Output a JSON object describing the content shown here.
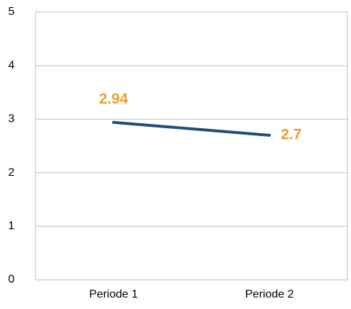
{
  "chart_data": {
    "type": "line",
    "categories": [
      "Periode 1",
      "Periode 2"
    ],
    "values": [
      2.94,
      2.7
    ],
    "color": "#1f4e79",
    "label_color": "#e8a02a",
    "ylim": [
      0,
      5
    ],
    "yticks": [
      0,
      1,
      2,
      3,
      4,
      5
    ],
    "grid": true
  }
}
